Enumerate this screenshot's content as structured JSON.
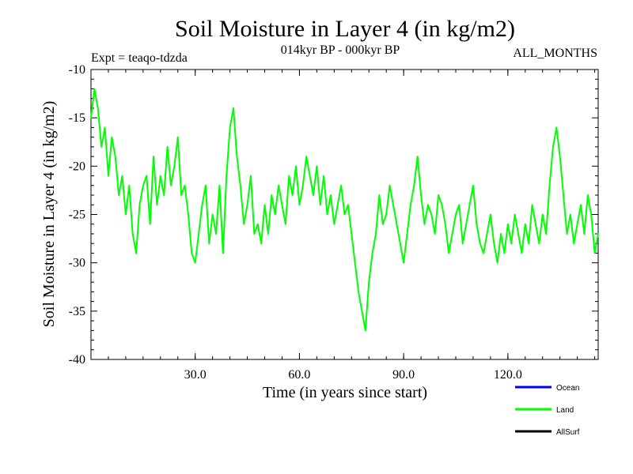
{
  "chart_data": {
    "type": "line",
    "title": "Soil Moisture in Layer 4 (in kg/m2)",
    "subtitle": "014kyr BP - 000kyr BP",
    "experiment": "Expt = teaqo-tdzda",
    "months": "ALL_MONTHS",
    "xlabel": "Time (in years since start)",
    "ylabel": "Soil Moisture in Layer 4 (in kg/m2)",
    "xlim": [
      0,
      146
    ],
    "ylim": [
      -40,
      -10
    ],
    "x_ticks": [
      30,
      60,
      90,
      120
    ],
    "x_tick_labels": [
      "30.0",
      "60.0",
      "90.0",
      "120.0"
    ],
    "y_ticks": [
      -10,
      -15,
      -20,
      -25,
      -30,
      -35,
      -40
    ],
    "y_tick_labels": [
      "-10",
      "-15",
      "-20",
      "-25",
      "-30",
      "-35",
      "-40"
    ],
    "legend": [
      {
        "name": "Ocean",
        "color": "#0000ff"
      },
      {
        "name": "Land",
        "color": "#00ff00"
      },
      {
        "name": "AllSurf",
        "color": "#000000"
      }
    ],
    "series": [
      {
        "name": "Land",
        "color": "#00ff00",
        "x": [
          0,
          1,
          2,
          3,
          4,
          5,
          6,
          7,
          8,
          9,
          10,
          11,
          12,
          13,
          14,
          15,
          16,
          17,
          18,
          19,
          20,
          21,
          22,
          23,
          24,
          25,
          26,
          27,
          28,
          29,
          30,
          31,
          32,
          33,
          34,
          35,
          36,
          37,
          38,
          39,
          40,
          41,
          42,
          43,
          44,
          45,
          46,
          47,
          48,
          49,
          50,
          51,
          52,
          53,
          54,
          55,
          56,
          57,
          58,
          59,
          60,
          61,
          62,
          63,
          64,
          65,
          66,
          67,
          68,
          69,
          70,
          71,
          72,
          73,
          74,
          75,
          76,
          77,
          78,
          79,
          80,
          81,
          82,
          83,
          84,
          85,
          86,
          87,
          88,
          89,
          90,
          91,
          92,
          93,
          94,
          95,
          96,
          97,
          98,
          99,
          100,
          101,
          102,
          103,
          104,
          105,
          106,
          107,
          108,
          109,
          110,
          111,
          112,
          113,
          114,
          115,
          116,
          117,
          118,
          119,
          120,
          121,
          122,
          123,
          124,
          125,
          126,
          127,
          128,
          129,
          130,
          131,
          132,
          133,
          134,
          135,
          136,
          137,
          138,
          139,
          140,
          141,
          142,
          143,
          144,
          145,
          146
        ],
        "values": [
          -15,
          -12,
          -14,
          -18,
          -16,
          -21,
          -17,
          -19,
          -23,
          -21,
          -25,
          -22,
          -27,
          -29,
          -24,
          -22,
          -21,
          -26,
          -19,
          -24,
          -21,
          -23,
          -18,
          -22,
          -20,
          -17,
          -23,
          -22,
          -25,
          -29,
          -30,
          -27,
          -24,
          -22,
          -28,
          -25,
          -27,
          -22,
          -29,
          -21,
          -16,
          -14,
          -19,
          -22,
          -26,
          -24,
          -21,
          -27,
          -26,
          -28,
          -24,
          -27,
          -23,
          -25,
          -22,
          -24,
          -26,
          -21,
          -23,
          -20,
          -24,
          -22,
          -19,
          -21,
          -23,
          -20,
          -24,
          -21,
          -25,
          -23,
          -26,
          -24,
          -22,
          -25,
          -24,
          -27,
          -30,
          -33,
          -35,
          -37,
          -32,
          -29,
          -27,
          -23,
          -26,
          -25,
          -22,
          -24,
          -26,
          -28,
          -30,
          -27,
          -24,
          -22,
          -19,
          -23,
          -26,
          -24,
          -25,
          -27,
          -23,
          -24,
          -26,
          -29,
          -27,
          -25,
          -24,
          -28,
          -26,
          -24,
          -22,
          -26,
          -28,
          -29,
          -27,
          -25,
          -28,
          -30,
          -27,
          -29,
          -26,
          -28,
          -25,
          -27,
          -29,
          -26,
          -28,
          -24,
          -26,
          -28,
          -25,
          -27,
          -22,
          -18,
          -16,
          -19,
          -23,
          -27,
          -25,
          -28,
          -26,
          -24,
          -27,
          -23,
          -25,
          -29,
          -27
        ]
      }
    ]
  }
}
